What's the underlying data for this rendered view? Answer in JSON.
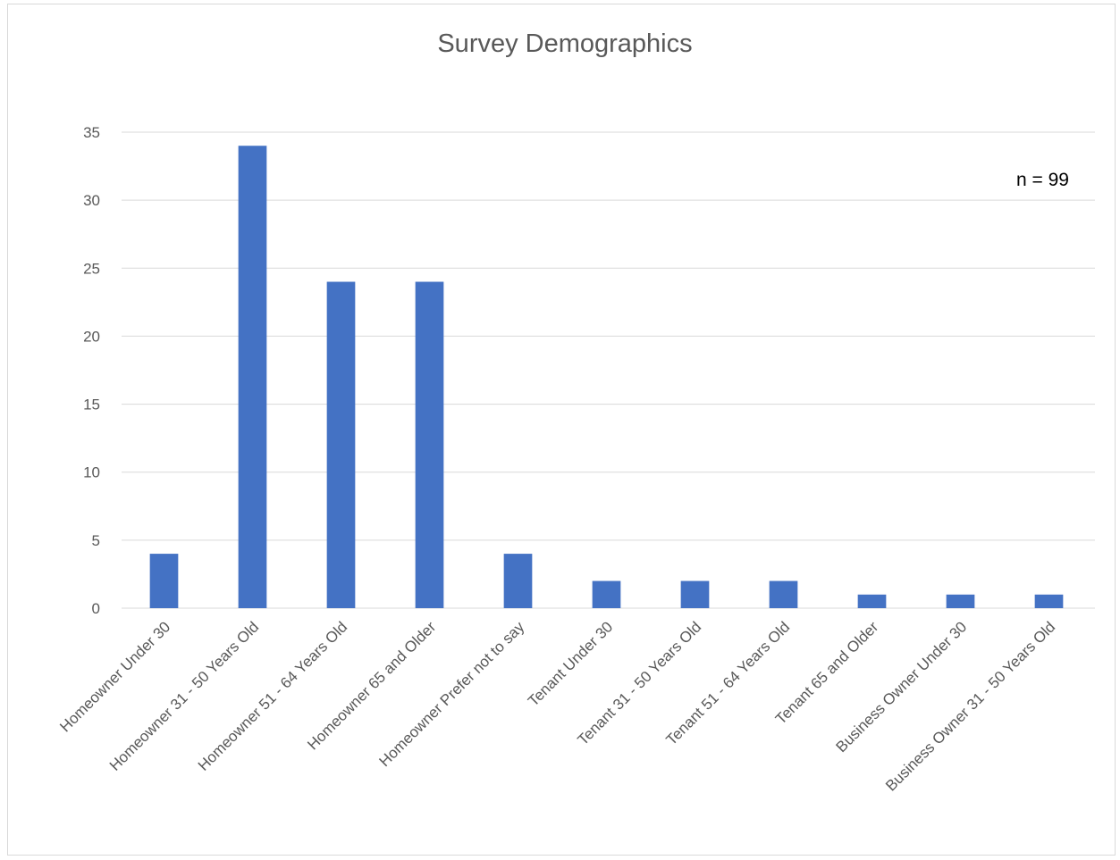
{
  "chart_data": {
    "type": "bar",
    "title": "Survey Demographics",
    "xlabel": "",
    "ylabel": "",
    "annotation": "n = 99",
    "categories": [
      "Homeowner Under 30",
      "Homeowner 31 - 50 Years Old",
      "Homeowner 51 - 64 Years Old",
      "Homeowner 65 and Older",
      "Homeowner Prefer not to say",
      "Tenant Under 30",
      "Tenant 31 - 50 Years Old",
      "Tenant 51 - 64 Years Old",
      "Tenant 65 and Older",
      "Business Owner Under 30",
      "Business Owner 31 - 50 Years Old"
    ],
    "values": [
      4,
      34,
      24,
      24,
      4,
      2,
      2,
      2,
      1,
      1,
      1
    ],
    "ylim": [
      0,
      35
    ],
    "yticks": [
      "0",
      "5",
      "10",
      "15",
      "20",
      "25",
      "30",
      "35"
    ],
    "grid": true,
    "legend": "none",
    "colors": {
      "bar": "#4472c4",
      "grid": "#d9d9d9",
      "text": "#595959"
    }
  }
}
